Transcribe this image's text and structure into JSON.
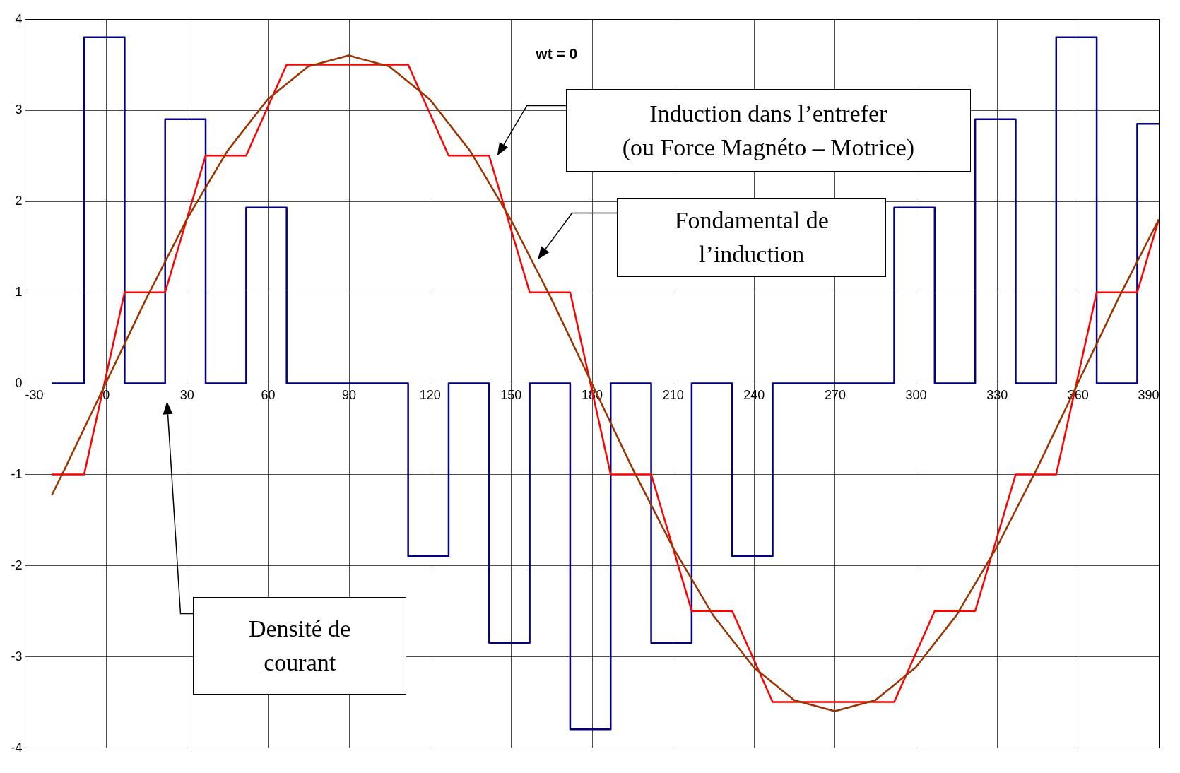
{
  "chart_data": {
    "type": "line",
    "annotations": [
      "wt = 0",
      "Induction dans l’entrefer\n(ou Force Magnéto – Motrice)",
      "Fondamental de\nl’induction",
      "Densité de\ncourant"
    ],
    "series": [
      {
        "color": "#000080",
        "x": [
          -20,
          -8,
          -8,
          7,
          7,
          22,
          22,
          37,
          37,
          52,
          52,
          67,
          67,
          112,
          112,
          127,
          127,
          142,
          142,
          157,
          157,
          172,
          172,
          187,
          187,
          202,
          202,
          217,
          217,
          232,
          232,
          247,
          247,
          292,
          292,
          307,
          307,
          322,
          322,
          337,
          337,
          352,
          352,
          367,
          367,
          382,
          382,
          390
        ],
        "values": [
          0,
          0,
          3.8,
          3.8,
          0,
          0,
          2.9,
          2.9,
          0,
          0,
          1.93,
          1.93,
          0,
          0,
          -1.9,
          -1.9,
          0,
          0,
          -2.85,
          -2.85,
          0,
          0,
          -3.8,
          -3.8,
          0,
          0,
          -2.85,
          -2.85,
          0,
          0,
          -1.9,
          -1.9,
          0,
          0,
          1.93,
          1.93,
          0,
          0,
          2.9,
          2.9,
          0,
          0,
          3.8,
          3.8,
          0,
          0,
          2.85,
          2.85
        ]
      },
      {
        "color": "#ff0000",
        "x": [
          -20,
          -8,
          7,
          22,
          37,
          52,
          67,
          112,
          127,
          142,
          157,
          172,
          187,
          202,
          217,
          232,
          247,
          292,
          307,
          322,
          337,
          352,
          367,
          382,
          390
        ],
        "values": [
          -1,
          -1,
          1,
          1,
          2.5,
          2.5,
          3.5,
          3.5,
          2.5,
          2.5,
          1,
          1,
          -1,
          -1,
          -2.5,
          -2.5,
          -3.5,
          -3.5,
          -2.5,
          -2.5,
          -1,
          -1,
          1,
          1,
          1.8
        ]
      },
      {
        "color": "#993300",
        "x": [
          -20,
          -15,
          0,
          15,
          30,
          45,
          60,
          75,
          90,
          105,
          120,
          135,
          150,
          165,
          180,
          195,
          210,
          225,
          240,
          255,
          270,
          285,
          300,
          315,
          330,
          345,
          360,
          375,
          390
        ],
        "values": [
          -1.23,
          -0.93,
          0,
          0.93,
          1.8,
          2.55,
          3.12,
          3.48,
          3.6,
          3.48,
          3.12,
          2.55,
          1.8,
          0.93,
          0,
          -0.93,
          -1.8,
          -2.55,
          -3.12,
          -3.48,
          -3.6,
          -3.48,
          -3.12,
          -2.55,
          -1.8,
          -0.93,
          0,
          0.93,
          1.8
        ]
      }
    ],
    "xlim": [
      -30,
      390
    ],
    "xticks": [
      -30,
      0,
      30,
      60,
      90,
      120,
      150,
      180,
      210,
      240,
      270,
      300,
      330,
      360,
      390
    ],
    "ylim": [
      -4,
      4
    ],
    "yticks": [
      -4,
      -3,
      -2,
      -1,
      0,
      1,
      2,
      3,
      4
    ],
    "grid": true
  }
}
